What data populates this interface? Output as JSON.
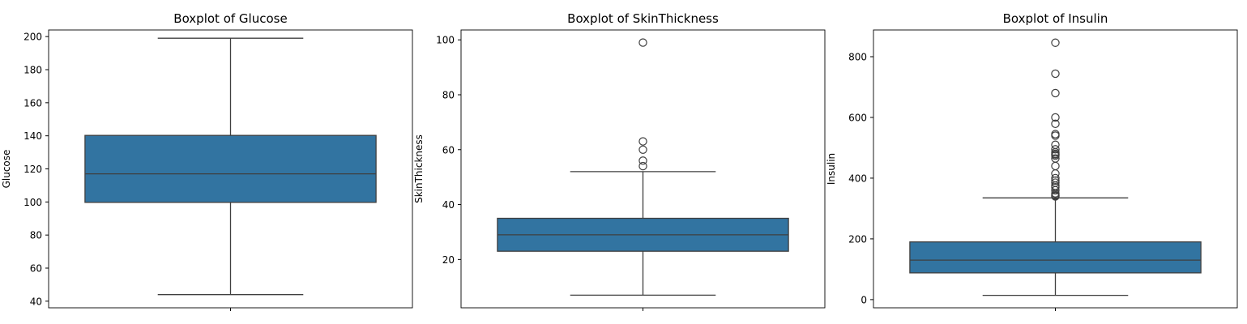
{
  "chart_data": [
    {
      "type": "box",
      "title": "Boxplot of Glucose",
      "xlabel": "",
      "ylabel": "Glucose",
      "ylim": [
        36,
        204
      ],
      "yticks": [
        40,
        60,
        80,
        100,
        120,
        140,
        160,
        180,
        200
      ],
      "box": {
        "whisker_low": 44,
        "q1": 99.75,
        "median": 117,
        "q3": 140.25,
        "whisker_high": 199
      },
      "outliers": [],
      "color": "#3274a1"
    },
    {
      "type": "box",
      "title": "Boxplot of SkinThickness",
      "xlabel": "",
      "ylabel": "SkinThickness",
      "ylim": [
        2.4,
        103.6
      ],
      "yticks": [
        20,
        40,
        60,
        80,
        100
      ],
      "box": {
        "whisker_low": 7,
        "q1": 23,
        "median": 29,
        "q3": 35,
        "whisker_high": 52
      },
      "outliers": [
        54,
        56,
        60,
        63,
        99
      ],
      "color": "#3274a1"
    },
    {
      "type": "box",
      "title": "Boxplot of Insulin",
      "xlabel": "",
      "ylabel": "Insulin",
      "ylim": [
        -27,
        888
      ],
      "yticks": [
        0,
        200,
        400,
        600,
        800
      ],
      "box": {
        "whisker_low": 14,
        "q1": 88,
        "median": 130,
        "q3": 190,
        "whisker_high": 335
      },
      "outliers": [
        340,
        342,
        345,
        350,
        360,
        370,
        375,
        385,
        392,
        400,
        415,
        440,
        465,
        474,
        478,
        480,
        485,
        495,
        510,
        540,
        545,
        579,
        600,
        680,
        744,
        846
      ],
      "color": "#3274a1"
    }
  ]
}
